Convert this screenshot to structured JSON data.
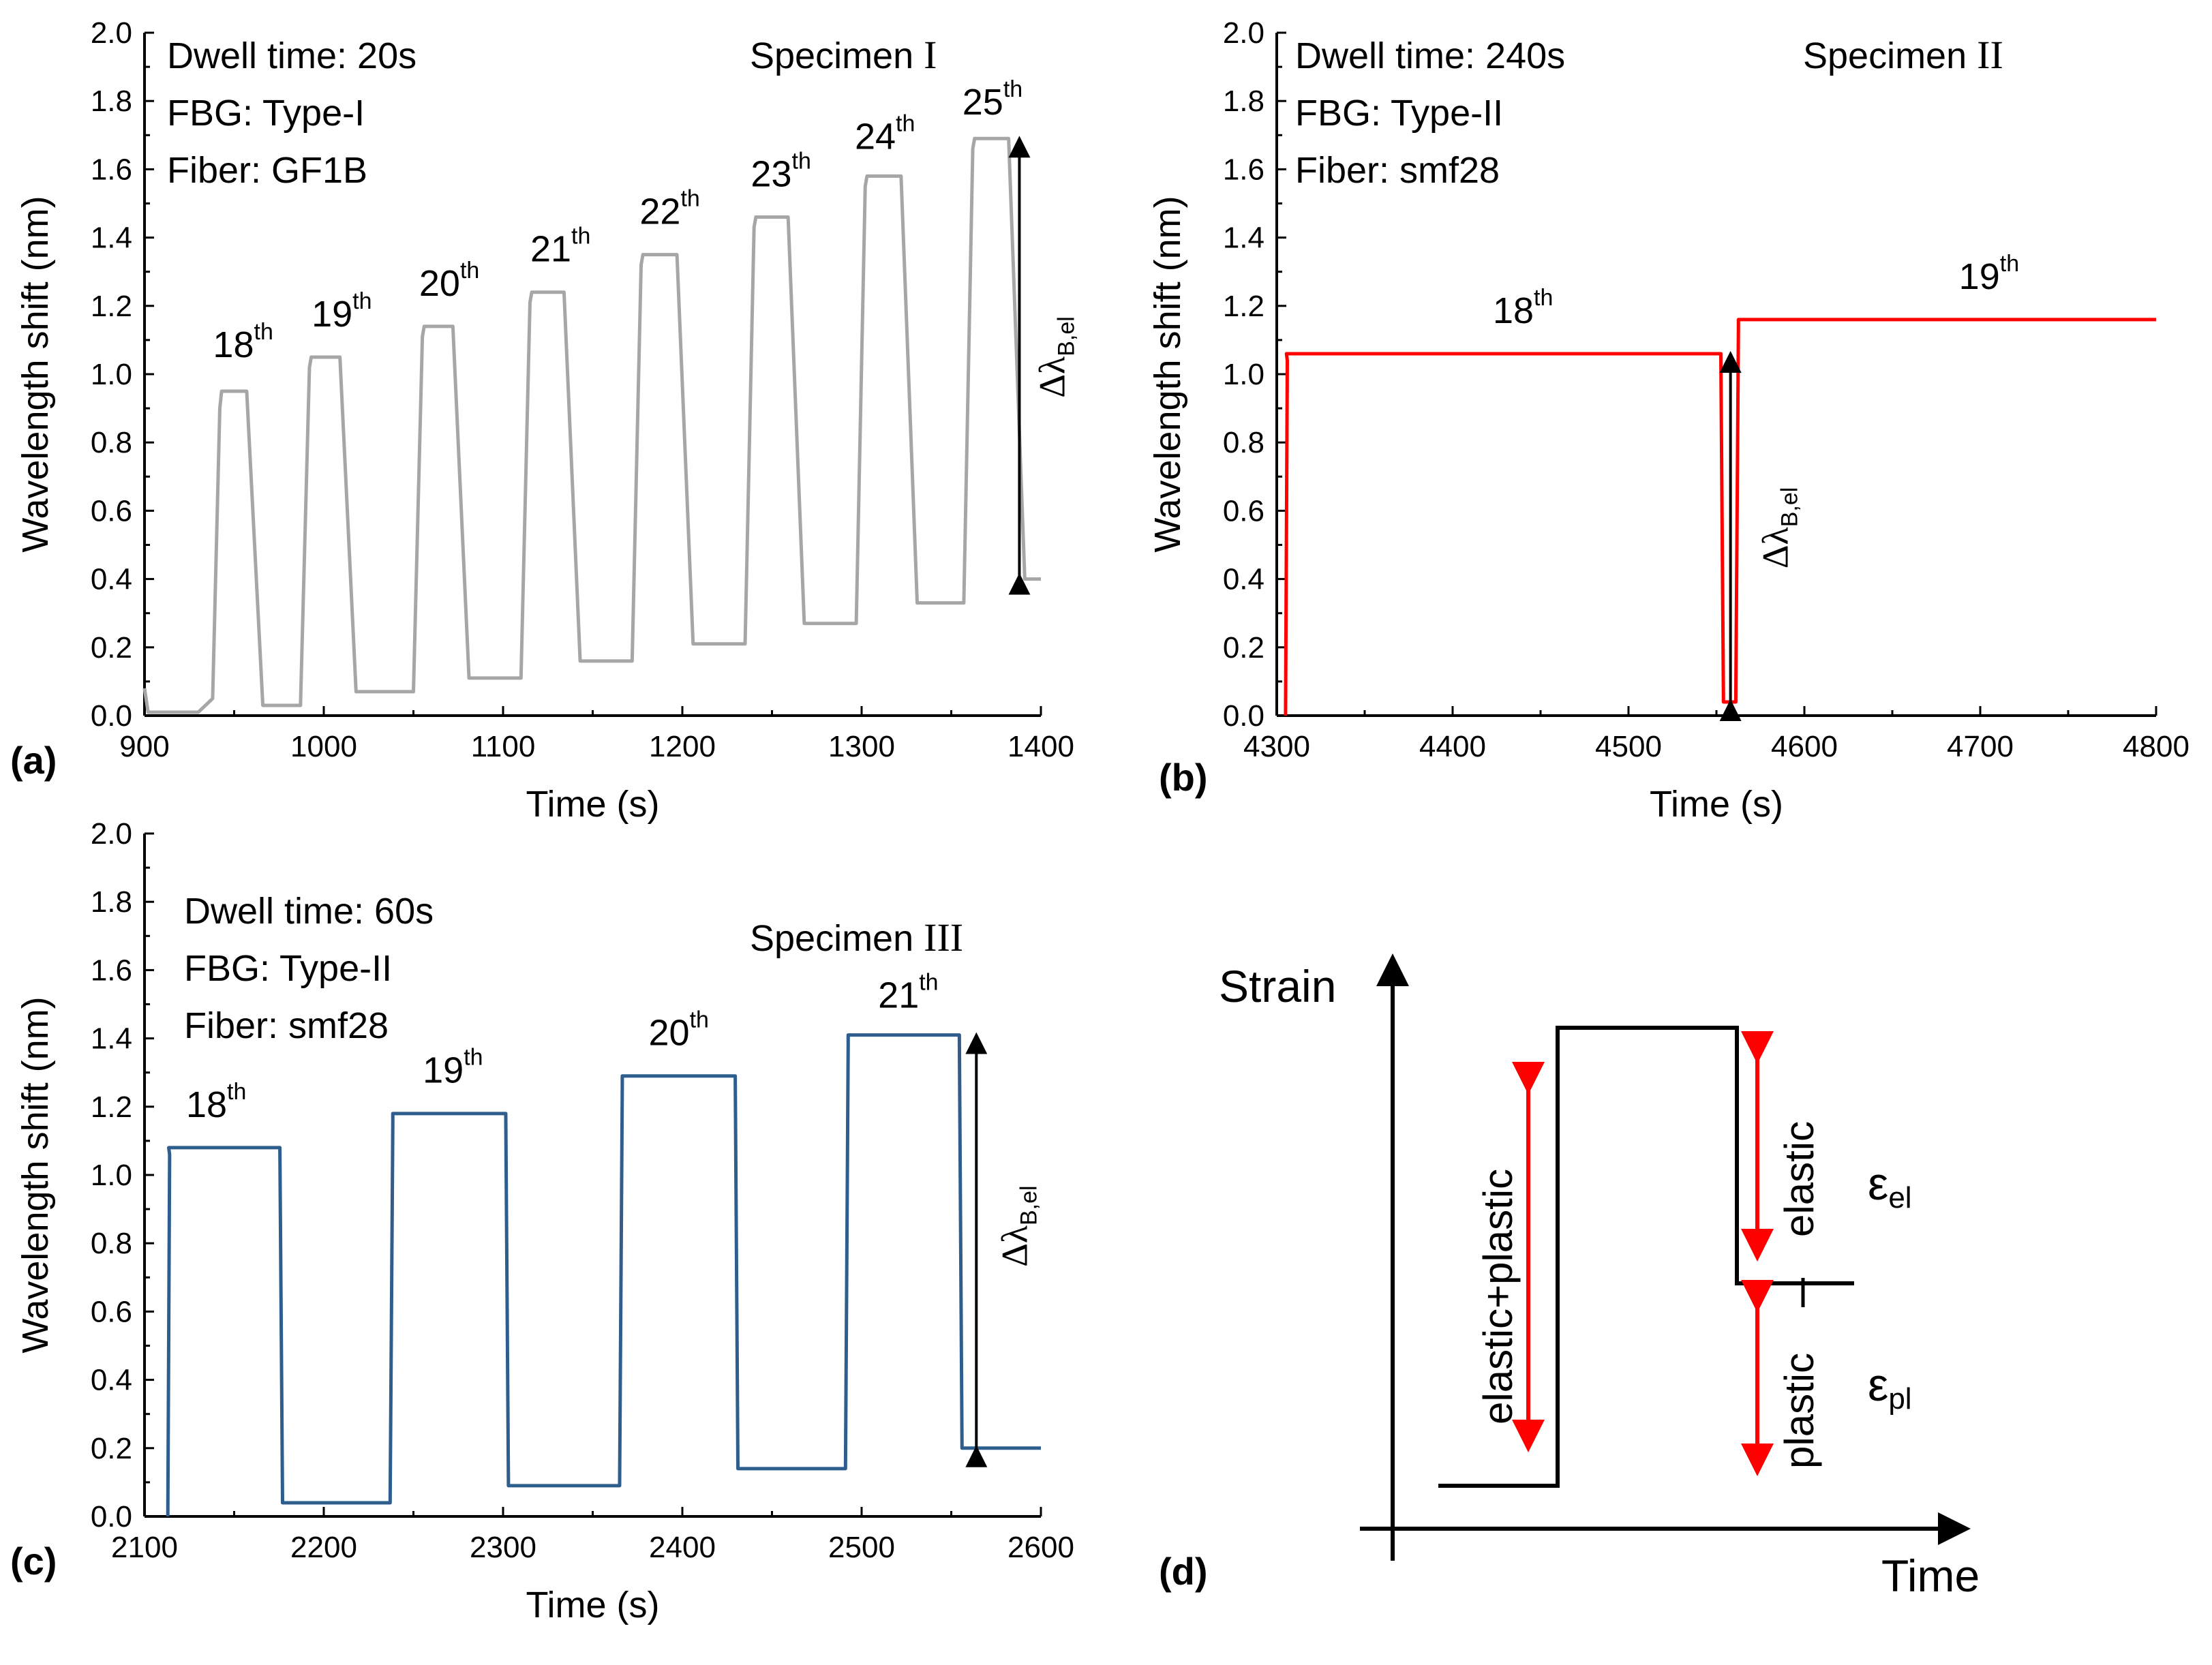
{
  "colors": {
    "a": "#a6a6a6",
    "b": "#ff0000",
    "c": "#2e5e8e",
    "arrow": "#000000",
    "schem_arrow": "#ff0000"
  },
  "delta_symbol": "Δλ",
  "delta_sub": "B,el",
  "chart_data": [
    {
      "panel": "(a)",
      "type": "line",
      "xlabel": "Time (s)",
      "ylabel": "Wavelength shift (nm)",
      "xlim": [
        900,
        1400
      ],
      "ylim": [
        0,
        2.0
      ],
      "xticks": [
        900,
        1000,
        1100,
        1200,
        1300,
        1400
      ],
      "yticks": [
        "0.0",
        "0.2",
        "0.4",
        "0.6",
        "0.8",
        "1.0",
        "1.2",
        "1.4",
        "1.6",
        "1.8",
        "2.0"
      ],
      "info": [
        "Dwell time: 20s",
        "FBG: Type-I",
        "Fiber: GF1B"
      ],
      "specimen": {
        "text": "Specimen",
        "numeral": "I"
      },
      "cycles": [
        {
          "label": "18",
          "sup": "th",
          "start": 940,
          "end": 960,
          "high": 0.95,
          "low": 0.03,
          "lx": 955,
          "ly": 1.05
        },
        {
          "label": "19",
          "sup": "th",
          "start": 990,
          "end": 1012,
          "high": 1.05,
          "low": 0.07,
          "lx": 1010,
          "ly": 1.14
        },
        {
          "label": "20",
          "sup": "th",
          "start": 1053,
          "end": 1075,
          "high": 1.14,
          "low": 0.11,
          "lx": 1070,
          "ly": 1.23
        },
        {
          "label": "21",
          "sup": "th",
          "start": 1113,
          "end": 1137,
          "high": 1.24,
          "low": 0.16,
          "lx": 1132,
          "ly": 1.33
        },
        {
          "label": "22",
          "sup": "th",
          "start": 1175,
          "end": 1200,
          "high": 1.35,
          "low": 0.21,
          "lx": 1193,
          "ly": 1.44
        },
        {
          "label": "23",
          "sup": "th",
          "start": 1238,
          "end": 1262,
          "high": 1.46,
          "low": 0.27,
          "lx": 1255,
          "ly": 1.55
        },
        {
          "label": "24",
          "sup": "th",
          "start": 1300,
          "end": 1325,
          "high": 1.58,
          "low": 0.33,
          "lx": 1313,
          "ly": 1.66
        },
        {
          "label": "25",
          "sup": "th",
          "start": 1360,
          "end": 1385,
          "high": 1.69,
          "low": 0.4,
          "lx": 1373,
          "ly": 1.76
        }
      ],
      "baseline_start": 900,
      "end_time": 1400,
      "arrow": {
        "x": 1388,
        "y1": 0.41,
        "y2": 1.69
      },
      "delta_label": {
        "x": 1398,
        "y": 1.05
      }
    },
    {
      "panel": "(b)",
      "type": "line",
      "xlabel": "Time (s)",
      "ylabel": "Wavelength shift (nm)",
      "xlim": [
        4300,
        4800
      ],
      "ylim": [
        0,
        2.0
      ],
      "xticks": [
        4300,
        4400,
        4500,
        4600,
        4700,
        4800
      ],
      "yticks": [
        "0.0",
        "0.2",
        "0.4",
        "0.6",
        "0.8",
        "1.0",
        "1.2",
        "1.4",
        "1.6",
        "1.8",
        "2.0"
      ],
      "info": [
        "Dwell time: 240s",
        "FBG: Type-II",
        "Fiber: smf28"
      ],
      "specimen": {
        "text": "Specimen",
        "numeral": "II"
      },
      "cycles": [
        {
          "label": "18",
          "sup": "th",
          "start": 4305,
          "end": 4553,
          "high": 1.06,
          "low": 0.04,
          "lx": 4440,
          "ly": 1.15
        },
        {
          "label": "19",
          "sup": "th",
          "start": 4562,
          "end": 4800,
          "high": 1.16,
          "low": null,
          "lx": 4705,
          "ly": 1.25
        }
      ],
      "baseline_start": 4305,
      "end_time": 4800,
      "arrow": {
        "x": 4558,
        "y1": 0.04,
        "y2": 1.06
      },
      "delta_label": {
        "x": 4575,
        "y": 0.55
      }
    },
    {
      "panel": "(c)",
      "type": "line",
      "xlabel": "Time (s)",
      "ylabel": "Wavelength shift (nm)",
      "xlim": [
        2100,
        2600
      ],
      "ylim": [
        0,
        2.0
      ],
      "xticks": [
        2100,
        2200,
        2300,
        2400,
        2500,
        2600
      ],
      "yticks": [
        "0.0",
        "0.2",
        "0.4",
        "0.6",
        "0.8",
        "1.0",
        "1.2",
        "1.4",
        "1.6",
        "1.8",
        "2.0"
      ],
      "info": [
        "Dwell time: 60s",
        "FBG: Type-II",
        "Fiber: smf28"
      ],
      "specimen": {
        "text": "Specimen",
        "numeral": "III"
      },
      "cycles": [
        {
          "label": "18",
          "sup": "th",
          "start": 2113,
          "end": 2176,
          "high": 1.08,
          "low": 0.04,
          "lx": 2140,
          "ly": 1.17
        },
        {
          "label": "19",
          "sup": "th",
          "start": 2238,
          "end": 2302,
          "high": 1.18,
          "low": 0.09,
          "lx": 2272,
          "ly": 1.27
        },
        {
          "label": "20",
          "sup": "th",
          "start": 2366,
          "end": 2430,
          "high": 1.29,
          "low": 0.14,
          "lx": 2398,
          "ly": 1.38
        },
        {
          "label": "21",
          "sup": "th",
          "start": 2492,
          "end": 2555,
          "high": 1.41,
          "low": 0.2,
          "lx": 2526,
          "ly": 1.49
        }
      ],
      "baseline_start": 2113,
      "end_time": 2600,
      "arrow": {
        "x": 2564,
        "y1": 0.2,
        "y2": 1.41
      },
      "delta_label": {
        "x": 2577,
        "y": 0.85
      }
    }
  ],
  "schematic": {
    "panel": "(d)",
    "ylabel": "Strain",
    "xlabel": "Time",
    "label_elastic_plastic": "elastic+plastic",
    "label_elastic": "elastic",
    "label_plastic": "plastic",
    "eps": "ε",
    "eps_el_sub": "el",
    "eps_pl_sub": "pl"
  }
}
